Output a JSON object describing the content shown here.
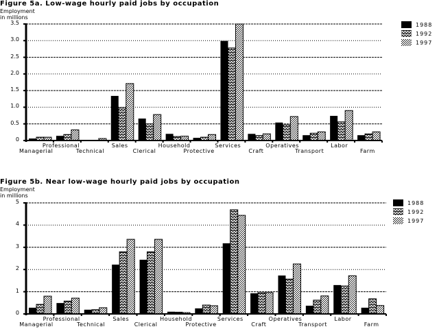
{
  "chart_data": [
    {
      "type": "bar",
      "title": "Figure 5a.  Low-wage hourly paid jobs by occupation",
      "ylabel": "Employment in millions",
      "xlabel": "",
      "ylim": [
        0,
        3.5
      ],
      "yticks": [
        "0",
        "0.5",
        "1.0",
        "1.5",
        "2.0",
        "2.5",
        "3.0",
        "3.5"
      ],
      "grid": true,
      "legend_position": "top-right",
      "categories": [
        "Managerial",
        "Professional",
        "Technical",
        "Sales",
        "Clerical",
        "Household",
        "Protective",
        "Services",
        "Craft",
        "Operatives",
        "Transport",
        "Labor",
        "Farm"
      ],
      "series": [
        {
          "name": "1988",
          "values": [
            0.06,
            0.14,
            0.0,
            1.34,
            0.66,
            0.2,
            0.08,
            2.99,
            0.2,
            0.54,
            0.16,
            0.74,
            0.16
          ]
        },
        {
          "name": "1992",
          "values": [
            0.1,
            0.18,
            0.0,
            0.99,
            0.5,
            0.12,
            0.1,
            2.78,
            0.15,
            0.47,
            0.22,
            0.56,
            0.2
          ]
        },
        {
          "name": "1997",
          "values": [
            0.1,
            0.32,
            0.06,
            1.71,
            0.78,
            0.13,
            0.18,
            3.5,
            0.2,
            0.72,
            0.26,
            0.9,
            0.26
          ]
        }
      ]
    },
    {
      "type": "bar",
      "title": "Figure 5b.  Near low-wage hourly paid jobs by occupation",
      "ylabel": "Employment in millions",
      "xlabel": "",
      "ylim": [
        0,
        5
      ],
      "yticks": [
        "0",
        "1",
        "2",
        "3",
        "4",
        "5"
      ],
      "grid": true,
      "legend_position": "top-right",
      "categories": [
        "Managerial",
        "Professional",
        "Technical",
        "Sales",
        "Clerical",
        "Household",
        "Protective",
        "Services",
        "Craft",
        "Operatives",
        "Transport",
        "Labor",
        "Farm"
      ],
      "series": [
        {
          "name": "1988",
          "values": [
            0.28,
            0.49,
            0.19,
            2.22,
            2.44,
            0.1,
            0.25,
            3.18,
            0.93,
            1.73,
            0.37,
            1.3,
            0.28
          ]
        },
        {
          "name": "1992",
          "values": [
            0.43,
            0.58,
            0.19,
            2.8,
            2.8,
            0.08,
            0.4,
            4.69,
            0.96,
            1.57,
            0.62,
            1.26,
            0.68
          ]
        },
        {
          "name": "1997",
          "values": [
            0.8,
            0.71,
            0.28,
            3.36,
            3.36,
            0.06,
            0.37,
            4.44,
            0.96,
            2.25,
            0.81,
            1.72,
            0.38
          ]
        }
      ]
    }
  ],
  "figure_a": {
    "title": "Figure 5a.  Low-wage hourly paid jobs by occupation",
    "ylabel_line1": "Employment",
    "ylabel_line2": "in millions"
  },
  "figure_b": {
    "title": "Figure 5b.  Near low-wage hourly paid jobs by occupation",
    "ylabel_line1": "Employment",
    "ylabel_line2": "in millions"
  },
  "legend": [
    {
      "label": "1988",
      "pattern": "solid"
    },
    {
      "label": "1992",
      "pattern": "checker"
    },
    {
      "label": "1997",
      "pattern": "dots"
    }
  ],
  "colors": {
    "ink": "#000000",
    "paper": "#ffffff"
  }
}
